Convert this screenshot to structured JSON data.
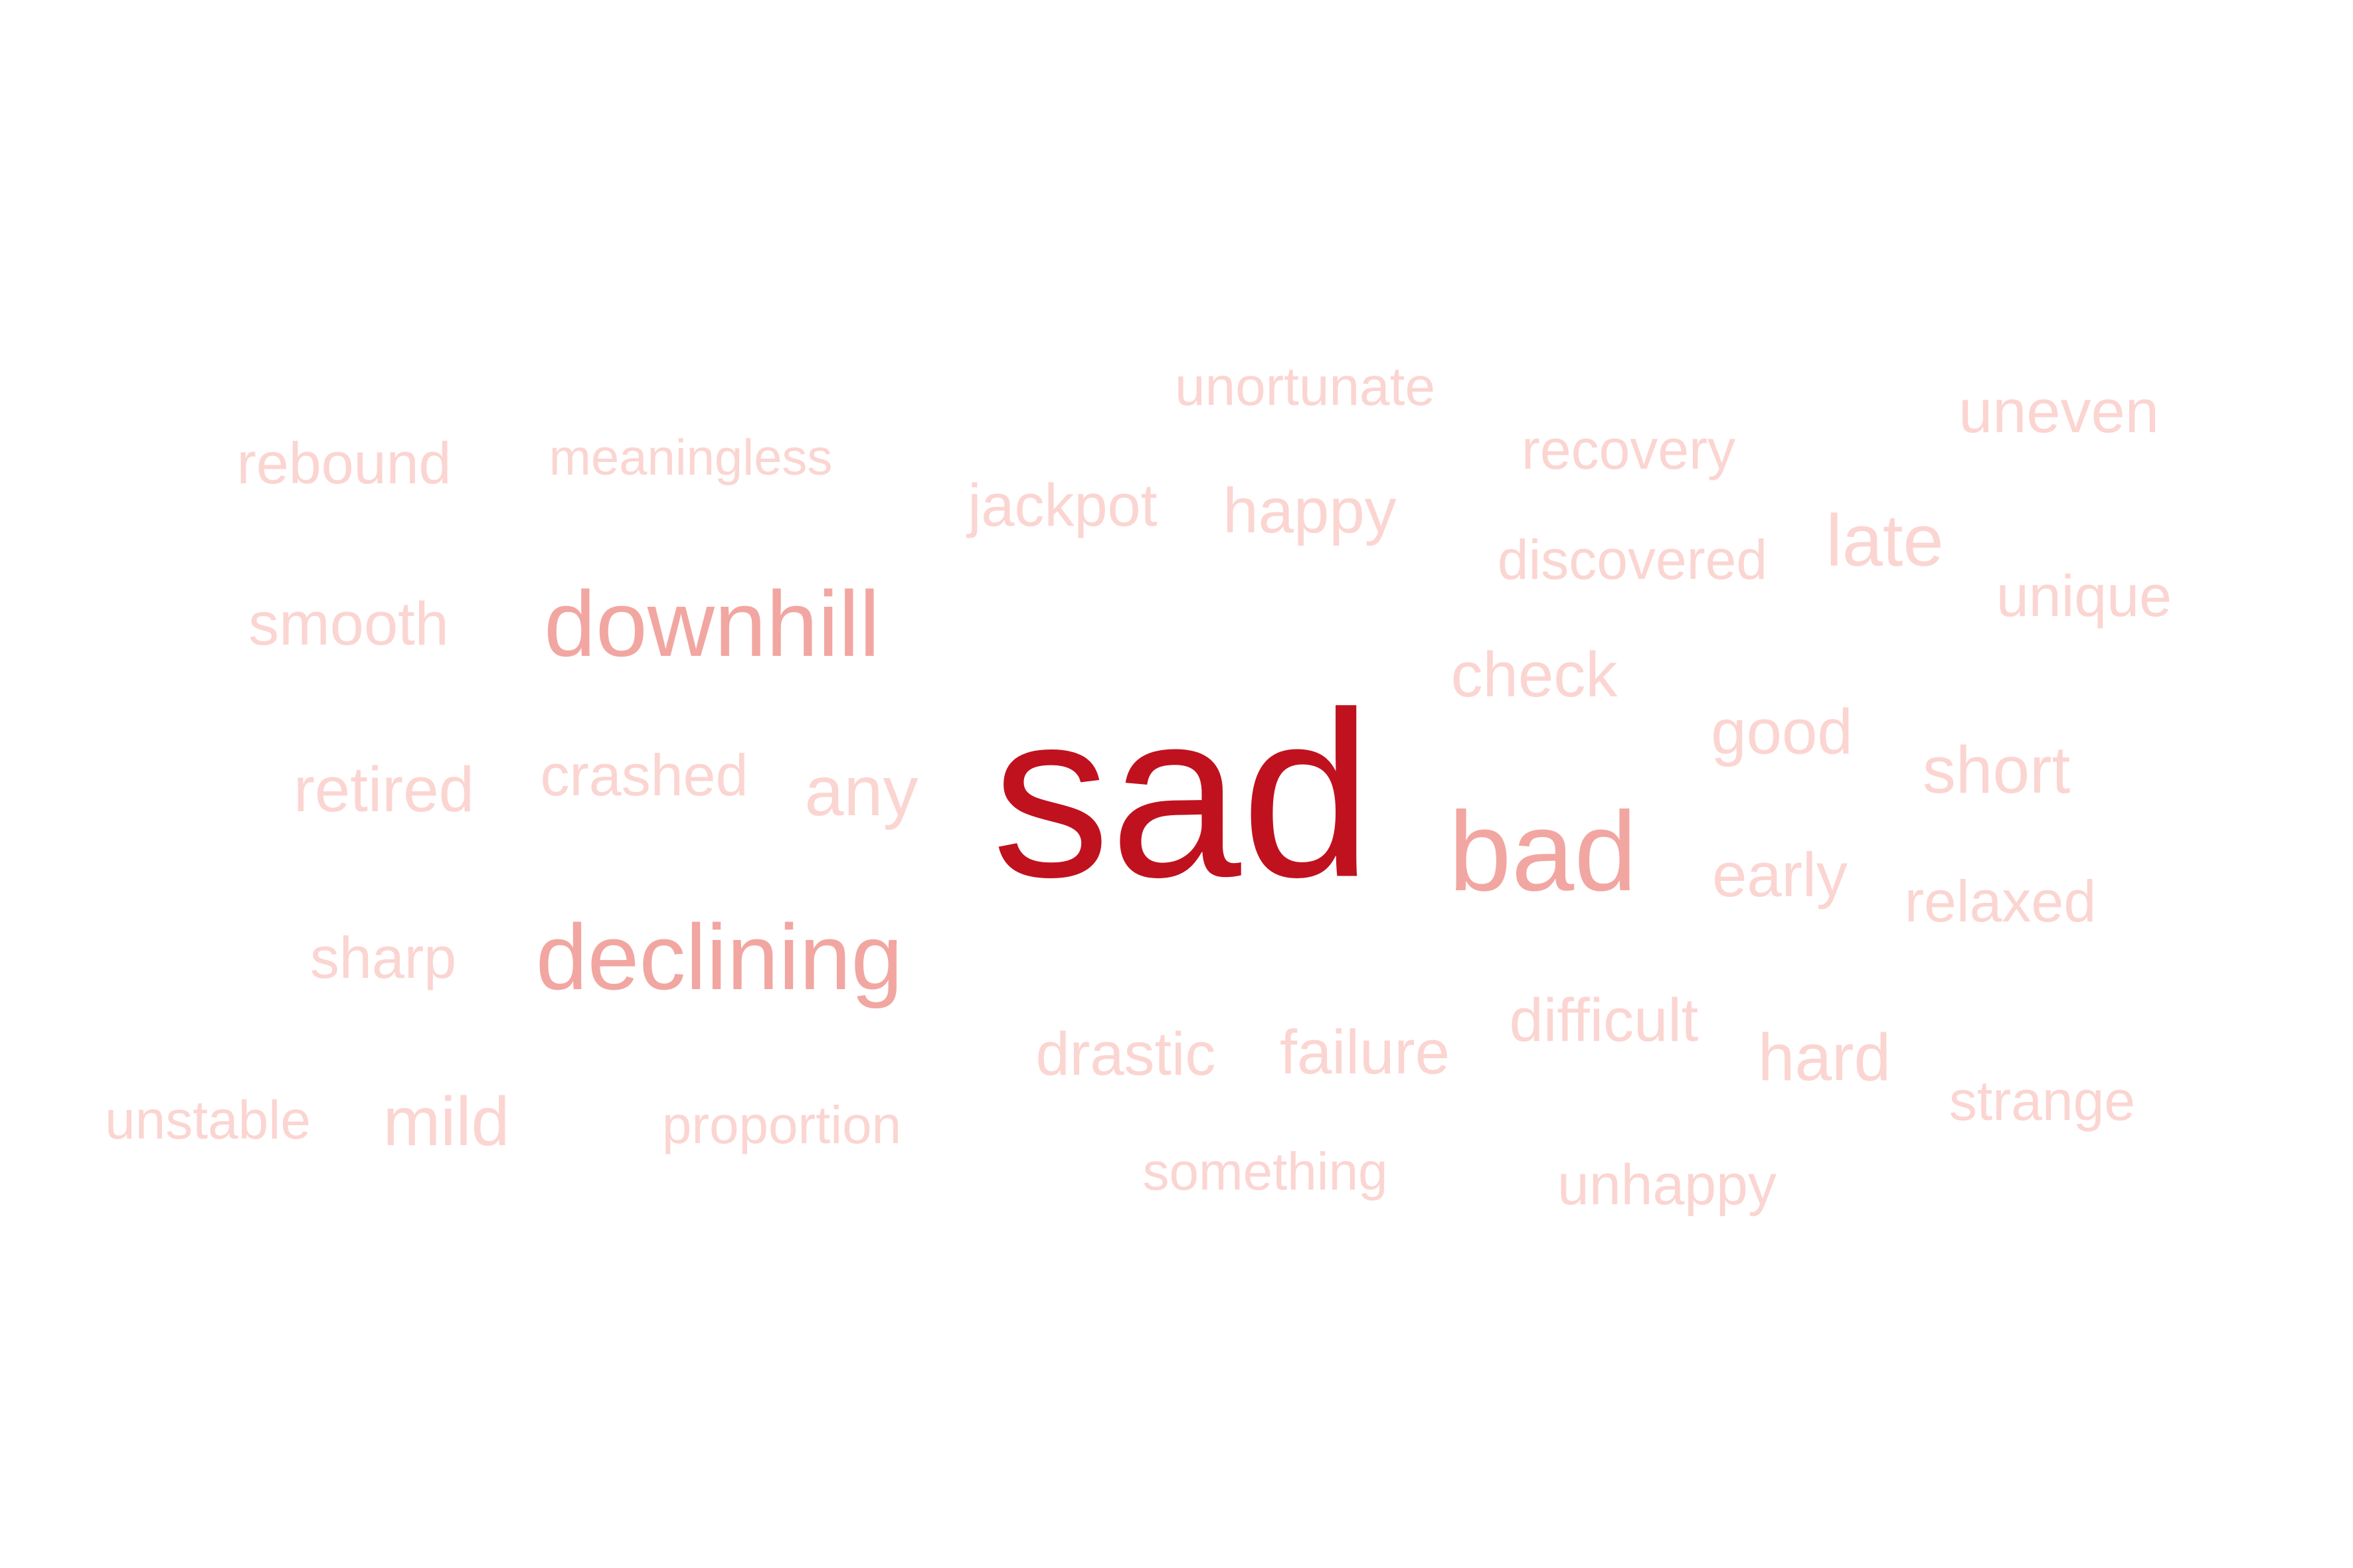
{
  "palette": {
    "background": "#ffffff",
    "strong": "#c0111f",
    "medium": "#f2a6a1",
    "light": "#fbd5d1"
  },
  "words": [
    {
      "text": "sad",
      "weight": "strong"
    },
    {
      "text": "downhill",
      "weight": "medium"
    },
    {
      "text": "declining",
      "weight": "medium"
    },
    {
      "text": "bad",
      "weight": "medium"
    },
    {
      "text": "unortunate",
      "weight": "light"
    },
    {
      "text": "rebound",
      "weight": "light"
    },
    {
      "text": "meaningless",
      "weight": "light"
    },
    {
      "text": "jackpot",
      "weight": "light"
    },
    {
      "text": "happy",
      "weight": "light"
    },
    {
      "text": "recovery",
      "weight": "light"
    },
    {
      "text": "uneven",
      "weight": "light"
    },
    {
      "text": "late",
      "weight": "light"
    },
    {
      "text": "discovered",
      "weight": "light"
    },
    {
      "text": "unique",
      "weight": "light"
    },
    {
      "text": "smooth",
      "weight": "light"
    },
    {
      "text": "check",
      "weight": "light"
    },
    {
      "text": "good",
      "weight": "light"
    },
    {
      "text": "short",
      "weight": "light"
    },
    {
      "text": "retired",
      "weight": "light"
    },
    {
      "text": "crashed",
      "weight": "light"
    },
    {
      "text": "any",
      "weight": "light"
    },
    {
      "text": "early",
      "weight": "light"
    },
    {
      "text": "relaxed",
      "weight": "light"
    },
    {
      "text": "sharp",
      "weight": "light"
    },
    {
      "text": "difficult",
      "weight": "light"
    },
    {
      "text": "drastic",
      "weight": "light"
    },
    {
      "text": "failure",
      "weight": "light"
    },
    {
      "text": "hard",
      "weight": "light"
    },
    {
      "text": "strange",
      "weight": "light"
    },
    {
      "text": "unstable",
      "weight": "light"
    },
    {
      "text": "mild",
      "weight": "light"
    },
    {
      "text": "proportion",
      "weight": "light"
    },
    {
      "text": "something",
      "weight": "light"
    },
    {
      "text": "unhappy",
      "weight": "light"
    }
  ]
}
